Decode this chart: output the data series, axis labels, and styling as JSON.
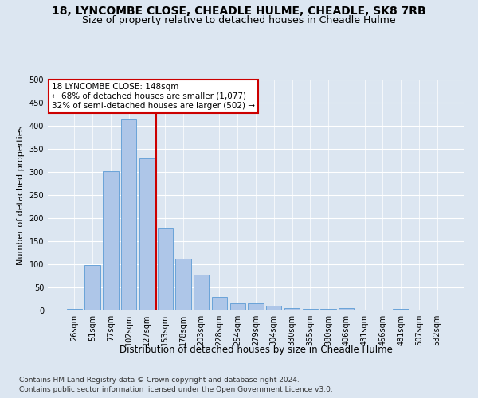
{
  "title1": "18, LYNCOMBE CLOSE, CHEADLE HULME, CHEADLE, SK8 7RB",
  "title2": "Size of property relative to detached houses in Cheadle Hulme",
  "xlabel": "Distribution of detached houses by size in Cheadle Hulme",
  "ylabel": "Number of detached properties",
  "categories": [
    "26sqm",
    "51sqm",
    "77sqm",
    "102sqm",
    "127sqm",
    "153sqm",
    "178sqm",
    "203sqm",
    "228sqm",
    "254sqm",
    "279sqm",
    "304sqm",
    "330sqm",
    "355sqm",
    "380sqm",
    "406sqm",
    "431sqm",
    "456sqm",
    "481sqm",
    "507sqm",
    "532sqm"
  ],
  "values": [
    3,
    99,
    302,
    413,
    330,
    178,
    112,
    77,
    30,
    15,
    15,
    10,
    5,
    4,
    3,
    5,
    2,
    1,
    3,
    1,
    2
  ],
  "bar_color": "#aec6e8",
  "bar_edge_color": "#5b9bd5",
  "reference_line_color": "#cc0000",
  "annotation_text": "18 LYNCOMBE CLOSE: 148sqm\n← 68% of detached houses are smaller (1,077)\n32% of semi-detached houses are larger (502) →",
  "annotation_box_color": "#ffffff",
  "annotation_box_edge_color": "#cc0000",
  "ylim": [
    0,
    500
  ],
  "yticks": [
    0,
    50,
    100,
    150,
    200,
    250,
    300,
    350,
    400,
    450,
    500
  ],
  "footnote1": "Contains HM Land Registry data © Crown copyright and database right 2024.",
  "footnote2": "Contains public sector information licensed under the Open Government Licence v3.0.",
  "background_color": "#dce6f1",
  "plot_background_color": "#dce6f1",
  "grid_color": "#ffffff",
  "title1_fontsize": 10,
  "title2_fontsize": 9,
  "xlabel_fontsize": 8.5,
  "ylabel_fontsize": 8,
  "tick_fontsize": 7,
  "annotation_fontsize": 7.5,
  "footnote_fontsize": 6.5
}
